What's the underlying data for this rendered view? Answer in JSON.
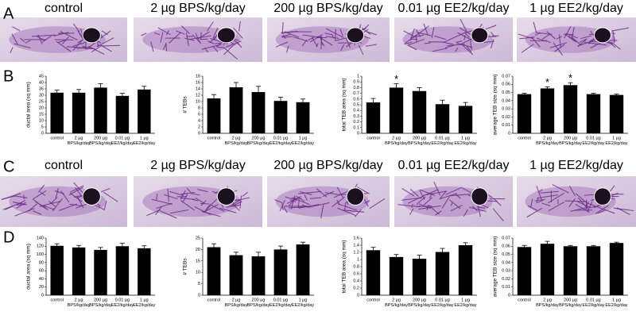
{
  "panels": [
    "A",
    "B",
    "C",
    "D"
  ],
  "headers_top": [
    "control",
    "2 µg BPS/kg/day",
    "200 µg BPS/kg/day",
    "0.01 µg EE2/kg/day",
    "1 µg EE2/kg/day"
  ],
  "headers_bottom": [
    "control",
    "2 µg BPS/kg/day",
    "200 µg BPS/kg/day",
    "0.01 µg EE2/kg/day",
    "1 µg EE2/kg/day"
  ],
  "chart_data": [
    {
      "type": "bar",
      "ylabel": "ductal area (sq mm)",
      "color": "#000000",
      "categories": [
        [
          "control"
        ],
        [
          "2 µg",
          "BPS/kg/day"
        ],
        [
          "200 µg",
          "BPS/kg/day"
        ],
        [
          "0.01 µg",
          "EE2/kg/day"
        ],
        [
          "1 µg",
          "EE2/kg/day"
        ]
      ],
      "values": [
        32,
        32,
        36,
        29.5,
        34.5
      ],
      "errors": [
        2,
        2.5,
        3,
        2,
        2.5
      ],
      "ylim": [
        0,
        45
      ],
      "yticks": [
        0,
        5,
        10,
        15,
        20,
        25,
        30,
        35,
        40,
        45
      ]
    },
    {
      "type": "bar",
      "ylabel": "# TEBs",
      "color": "#000000",
      "categories": [
        [
          "control"
        ],
        [
          "2 µg",
          "BPS/kg/day"
        ],
        [
          "200 µg",
          "BPS/kg/day"
        ],
        [
          "0.01 µg",
          "EE2/kg/day"
        ],
        [
          "1 µg",
          "EE2/kg/day"
        ]
      ],
      "values": [
        11,
        14.5,
        13,
        10.2,
        9.8
      ],
      "errors": [
        1.2,
        1.5,
        1.8,
        1.2,
        1
      ],
      "ylim": [
        0,
        18
      ],
      "yticks": [
        0,
        2,
        4,
        6,
        8,
        10,
        12,
        14,
        16,
        18
      ]
    },
    {
      "type": "bar",
      "ylabel": "total TEB area (sq mm)",
      "color": "#000000",
      "categories": [
        [
          "control"
        ],
        [
          "2 µg",
          "BPS/kg/day"
        ],
        [
          "200 µg",
          "BPS/kg/day"
        ],
        [
          "0.01 µg",
          "EE2/kg/day"
        ],
        [
          "1 µg",
          "EE2/kg/day"
        ]
      ],
      "values": [
        0.54,
        0.8,
        0.74,
        0.51,
        0.48
      ],
      "errors": [
        0.07,
        0.07,
        0.06,
        0.07,
        0.06
      ],
      "ylim": [
        0,
        1
      ],
      "yticks": [
        0,
        0.1,
        0.2,
        0.3,
        0.4,
        0.5,
        0.6,
        0.7,
        0.8,
        0.9,
        1
      ],
      "annotations": [
        {
          "text": "*",
          "at": 1
        }
      ]
    },
    {
      "type": "bar",
      "ylabel": "average TEB size (sq mm)",
      "color": "#000000",
      "categories": [
        [
          "control"
        ],
        [
          "2 µg",
          "BPS/kg/day"
        ],
        [
          "200 µg",
          "BPS/kg/day"
        ],
        [
          "0.01 µg",
          "EE2/kg/day"
        ],
        [
          "1 µg",
          "EE2/kg/day"
        ]
      ],
      "values": [
        0.048,
        0.055,
        0.059,
        0.048,
        0.047
      ],
      "errors": [
        0.001,
        0.002,
        0.003,
        0.001,
        0.001
      ],
      "ylim": [
        0,
        0.07
      ],
      "yticks": [
        0,
        0.01,
        0.02,
        0.03,
        0.04,
        0.05,
        0.06,
        0.07
      ],
      "annotations": [
        {
          "text": "*",
          "at": 1
        },
        {
          "text": "*",
          "at": 2
        }
      ]
    },
    {
      "type": "bar",
      "ylabel": "ductal area (sq mm)",
      "color": "#000000",
      "categories": [
        [
          "control"
        ],
        [
          "2 µg",
          "BPS/kg/day"
        ],
        [
          "200 µg",
          "BPS/kg/day"
        ],
        [
          "0.01 µg",
          "EE2/kg/day"
        ],
        [
          "1 µg",
          "EE2/kg/day"
        ]
      ],
      "values": [
        121,
        117,
        111,
        120,
        115
      ],
      "errors": [
        5,
        5,
        6,
        7,
        6
      ],
      "ylim": [
        0,
        140
      ],
      "yticks": [
        0,
        20,
        40,
        60,
        80,
        100,
        120,
        140
      ]
    },
    {
      "type": "bar",
      "ylabel": "# TEBs",
      "color": "#000000",
      "categories": [
        [
          "control"
        ],
        [
          "2 µg",
          "BPS/kg/day"
        ],
        [
          "200 µg",
          "BPS/kg/day"
        ],
        [
          "0.01 µg",
          "EE2/kg/day"
        ],
        [
          "1 µg",
          "EE2/kg/day"
        ]
      ],
      "values": [
        21,
        17.5,
        17,
        20,
        22.2
      ],
      "errors": [
        1.5,
        1.3,
        1.8,
        1.5,
        1
      ],
      "ylim": [
        0,
        25
      ],
      "yticks": [
        0,
        5,
        10,
        15,
        20,
        25
      ]
    },
    {
      "type": "bar",
      "ylabel": "total TEB area (sq mm)",
      "color": "#000000",
      "categories": [
        [
          "control"
        ],
        [
          "2 µg",
          "BPS/kg/day"
        ],
        [
          "200 µg",
          "BPS/kg/day"
        ],
        [
          "0.01 µg",
          "EE2/kg/day"
        ],
        [
          "1 µg",
          "EE2/kg/day"
        ]
      ],
      "values": [
        1.26,
        1.07,
        1.02,
        1.21,
        1.4
      ],
      "errors": [
        0.08,
        0.07,
        0.1,
        0.1,
        0.07
      ],
      "ylim": [
        0,
        1.6
      ],
      "yticks": [
        0,
        0.2,
        0.4,
        0.6,
        0.8,
        1,
        1.2,
        1.4,
        1.6
      ]
    },
    {
      "type": "bar",
      "ylabel": "average TEB size (sq mm)",
      "color": "#000000",
      "categories": [
        [
          "control"
        ],
        [
          "2 µg",
          "BPS/kg/day"
        ],
        [
          "200 µg",
          "BPS/kg/day"
        ],
        [
          "0.01 µg",
          "EE2/kg/day"
        ],
        [
          "1 µg",
          "EE2/kg/day"
        ]
      ],
      "values": [
        0.059,
        0.063,
        0.06,
        0.06,
        0.064
      ],
      "errors": [
        0.002,
        0.003,
        0.001,
        0.001,
        0.001
      ],
      "ylim": [
        0,
        0.07
      ],
      "yticks": [
        0,
        0.01,
        0.02,
        0.03,
        0.04,
        0.05,
        0.06,
        0.07
      ]
    }
  ]
}
